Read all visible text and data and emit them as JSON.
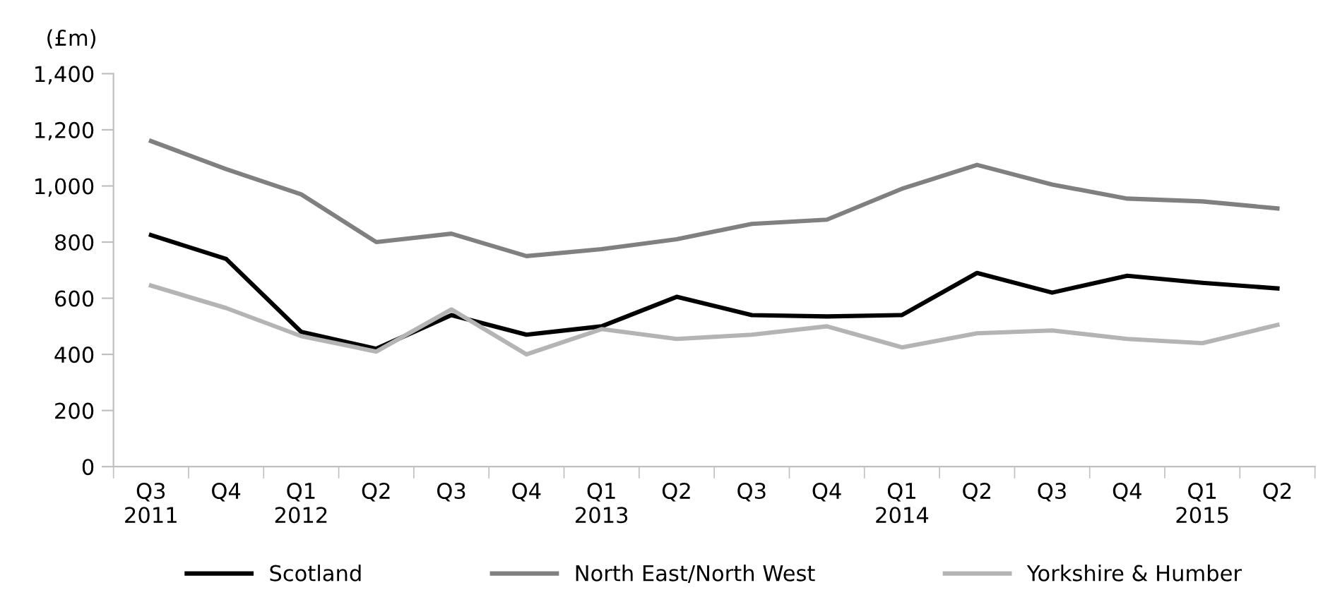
{
  "chart_data": {
    "type": "line",
    "ylabel": "(£m)",
    "categories": [
      "Q3\n2011",
      "Q4",
      "Q1\n2012",
      "Q2",
      "Q3",
      "Q4",
      "Q1\n2013",
      "Q2",
      "Q3",
      "Q4",
      "Q1\n2014",
      "Q2",
      "Q3",
      "Q4",
      "Q1\n2015",
      "Q2"
    ],
    "series": [
      {
        "name": "Scotland",
        "color": "#000000",
        "values": [
          825,
          740,
          480,
          420,
          540,
          470,
          500,
          605,
          540,
          535,
          540,
          690,
          620,
          680,
          655,
          635
        ]
      },
      {
        "name": "North East/North West",
        "color": "#808080",
        "values": [
          1160,
          1060,
          970,
          800,
          830,
          750,
          775,
          810,
          865,
          880,
          990,
          1075,
          1005,
          955,
          945,
          920
        ]
      },
      {
        "name": "Yorkshire & Humber",
        "color": "#b4b4b4",
        "values": [
          645,
          565,
          465,
          410,
          560,
          400,
          490,
          455,
          470,
          500,
          425,
          475,
          485,
          455,
          440,
          505
        ]
      }
    ],
    "ylim": [
      0,
      1400
    ],
    "yticks": [
      {
        "value": 0,
        "label": "0"
      },
      {
        "value": 200,
        "label": "200"
      },
      {
        "value": 400,
        "label": "400"
      },
      {
        "value": 600,
        "label": "600"
      },
      {
        "value": 800,
        "label": "800"
      },
      {
        "value": 1000,
        "label": "1,000"
      },
      {
        "value": 1200,
        "label": "1,200"
      },
      {
        "value": 1400,
        "label": "1,400"
      }
    ],
    "grid": false,
    "legend": "bottom",
    "marker": "none",
    "line_style": "solid"
  }
}
